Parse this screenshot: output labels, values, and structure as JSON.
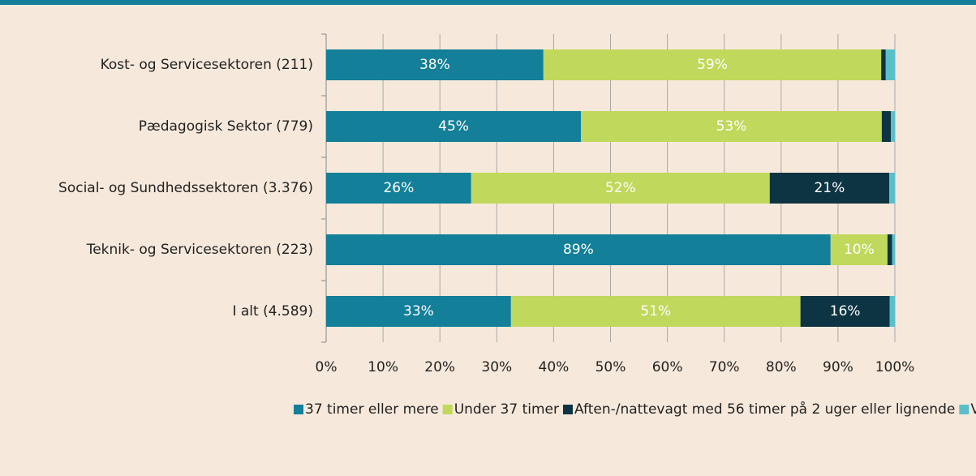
{
  "chart_data": {
    "type": "stacked-bar-horizontal",
    "categories": [
      "Kost- og Servicesektoren (211)",
      "Pædagogisk Sektor (779)",
      "Social- og Sundhedssektoren (3.376)",
      "Teknik- og Servicesektoren (223)",
      "I alt (4.589)"
    ],
    "series": [
      {
        "name": "37 timer eller mere",
        "color": "#137f99",
        "values": [
          38.2,
          44.8,
          25.5,
          88.7,
          32.5
        ],
        "value_labels": [
          "38%",
          "45%",
          "26%",
          "89%",
          "33%"
        ]
      },
      {
        "name": "Under 37 timer",
        "color": "#c0d85b",
        "values": [
          59.4,
          52.9,
          52.5,
          10.0,
          50.9
        ],
        "value_labels": [
          "59%",
          "53%",
          "52%",
          "10%",
          "51%"
        ]
      },
      {
        "name": "Aften-/nattevagt med 56 timer på 2 uger eller lignende",
        "color": "#0d3443",
        "values": [
          0.8,
          1.6,
          21.0,
          0.8,
          15.7
        ],
        "value_labels": [
          null,
          null,
          "21%",
          null,
          "16%"
        ]
      },
      {
        "name": "Ved ikke",
        "color": "#5bbfc9",
        "values": [
          1.6,
          0.7,
          1.0,
          0.5,
          0.9
        ]
      }
    ],
    "xlim": [
      0,
      100
    ],
    "xticks": [
      {
        "value": 0,
        "label": "0%"
      },
      {
        "value": 10,
        "label": "10%"
      },
      {
        "value": 20,
        "label": "20%"
      },
      {
        "value": 30,
        "label": "30%"
      },
      {
        "value": 40,
        "label": "40%"
      },
      {
        "value": 50,
        "label": "50%"
      },
      {
        "value": 60,
        "label": "60%"
      },
      {
        "value": 70,
        "label": "70%"
      },
      {
        "value": 80,
        "label": "80%"
      },
      {
        "value": 90,
        "label": "90%"
      },
      {
        "value": 100,
        "label": "100%"
      }
    ],
    "grid": true
  }
}
